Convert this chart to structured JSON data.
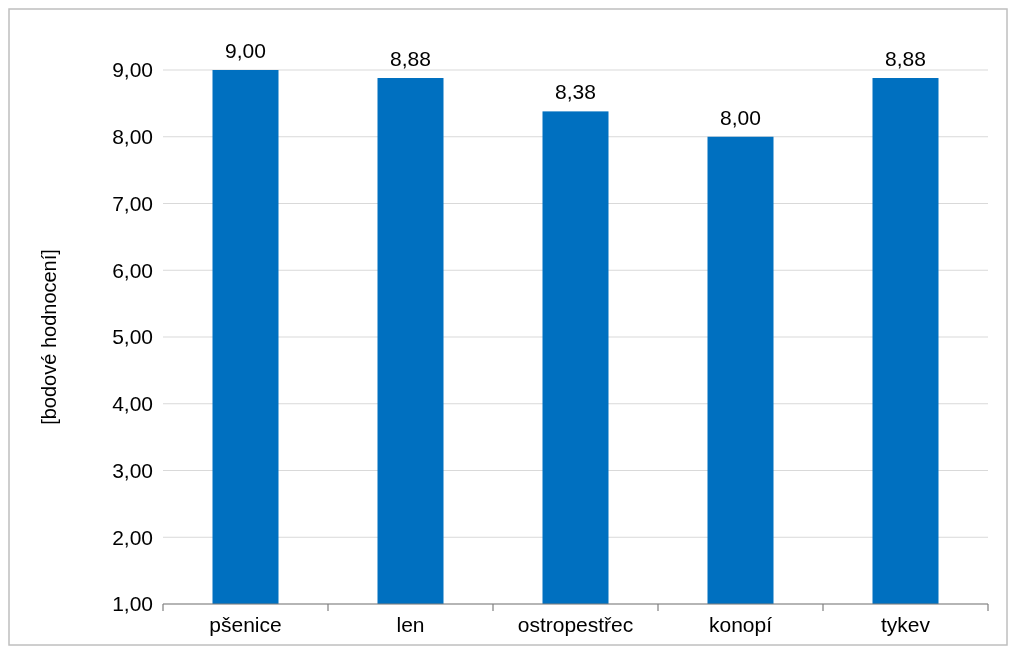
{
  "chart_data": {
    "type": "bar",
    "ylabel": "[bodové hodnocení]",
    "categories": [
      "pšenice",
      "len",
      "ostropestřec",
      "konopí",
      "tykev"
    ],
    "values": [
      9.0,
      8.88,
      8.38,
      8.0,
      8.88
    ],
    "color": "#0070c0",
    "value_labels": [
      "9,00",
      "8,88",
      "8,38",
      "8,00",
      "8,88"
    ],
    "ylim": [
      1,
      9
    ],
    "yticks": [
      {
        "value": 1,
        "label": "1,00"
      },
      {
        "value": 2,
        "label": "2,00"
      },
      {
        "value": 3,
        "label": "3,00"
      },
      {
        "value": 4,
        "label": "4,00"
      },
      {
        "value": 5,
        "label": "5,00"
      },
      {
        "value": 6,
        "label": "6,00"
      },
      {
        "value": 7,
        "label": "7,00"
      },
      {
        "value": 8,
        "label": "8,00"
      },
      {
        "value": 9,
        "label": "9,00"
      }
    ],
    "grid": "y"
  }
}
